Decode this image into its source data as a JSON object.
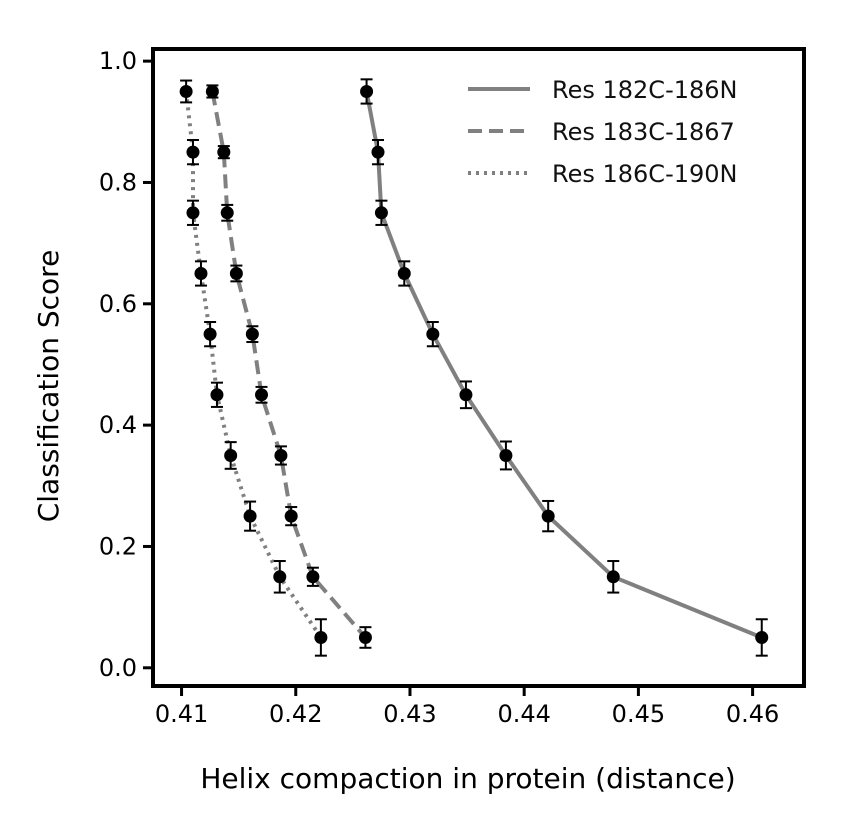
{
  "chart_data": {
    "type": "line",
    "title": "",
    "xlabel": "Helix compaction in protein (distance)",
    "ylabel": "Classification Score",
    "xlim": [
      0.4075,
      0.4645
    ],
    "ylim": [
      -0.03,
      1.02
    ],
    "x_ticks": [
      "0.41",
      "0.42",
      "0.43",
      "0.44",
      "0.45",
      "0.46"
    ],
    "x_tick_values": [
      0.41,
      0.42,
      0.43,
      0.44,
      0.45,
      0.46
    ],
    "y_ticks": [
      "0.0",
      "0.2",
      "0.4",
      "0.6",
      "0.8",
      "1.0"
    ],
    "y_tick_values": [
      0.0,
      0.2,
      0.4,
      0.6,
      0.8,
      1.0
    ],
    "grid": false,
    "legend_position": "top-right",
    "series": [
      {
        "name": "Res 182C-186N",
        "line_style": "solid",
        "color": "#808080",
        "x": [
          0.4262,
          0.4272,
          0.4275,
          0.4295,
          0.432,
          0.4349,
          0.4384,
          0.4421,
          0.4478,
          0.4608
        ],
        "y": [
          0.95,
          0.85,
          0.75,
          0.65,
          0.55,
          0.45,
          0.35,
          0.25,
          0.15,
          0.05
        ],
        "error": [
          0.02,
          0.02,
          0.02,
          0.02,
          0.02,
          0.022,
          0.023,
          0.025,
          0.026,
          0.03
        ]
      },
      {
        "name": "Res 183C-1867",
        "line_style": "dashed",
        "color": "#808080",
        "x": [
          0.4127,
          0.4137,
          0.414,
          0.4148,
          0.4162,
          0.417,
          0.4187,
          0.4196,
          0.4215,
          0.4261
        ],
        "y": [
          0.95,
          0.85,
          0.75,
          0.65,
          0.55,
          0.45,
          0.35,
          0.25,
          0.15,
          0.05
        ],
        "error": [
          0.01,
          0.01,
          0.013,
          0.013,
          0.013,
          0.013,
          0.015,
          0.015,
          0.015,
          0.017
        ]
      },
      {
        "name": "Res 186C-190N",
        "line_style": "dotted",
        "color": "#808080",
        "x": [
          0.4104,
          0.411,
          0.411,
          0.4117,
          0.4125,
          0.4131,
          0.4143,
          0.416,
          0.4186,
          0.4222
        ],
        "y": [
          0.95,
          0.85,
          0.75,
          0.65,
          0.55,
          0.45,
          0.35,
          0.25,
          0.15,
          0.05
        ],
        "error": [
          0.018,
          0.02,
          0.02,
          0.02,
          0.02,
          0.02,
          0.022,
          0.024,
          0.026,
          0.03
        ]
      }
    ]
  }
}
